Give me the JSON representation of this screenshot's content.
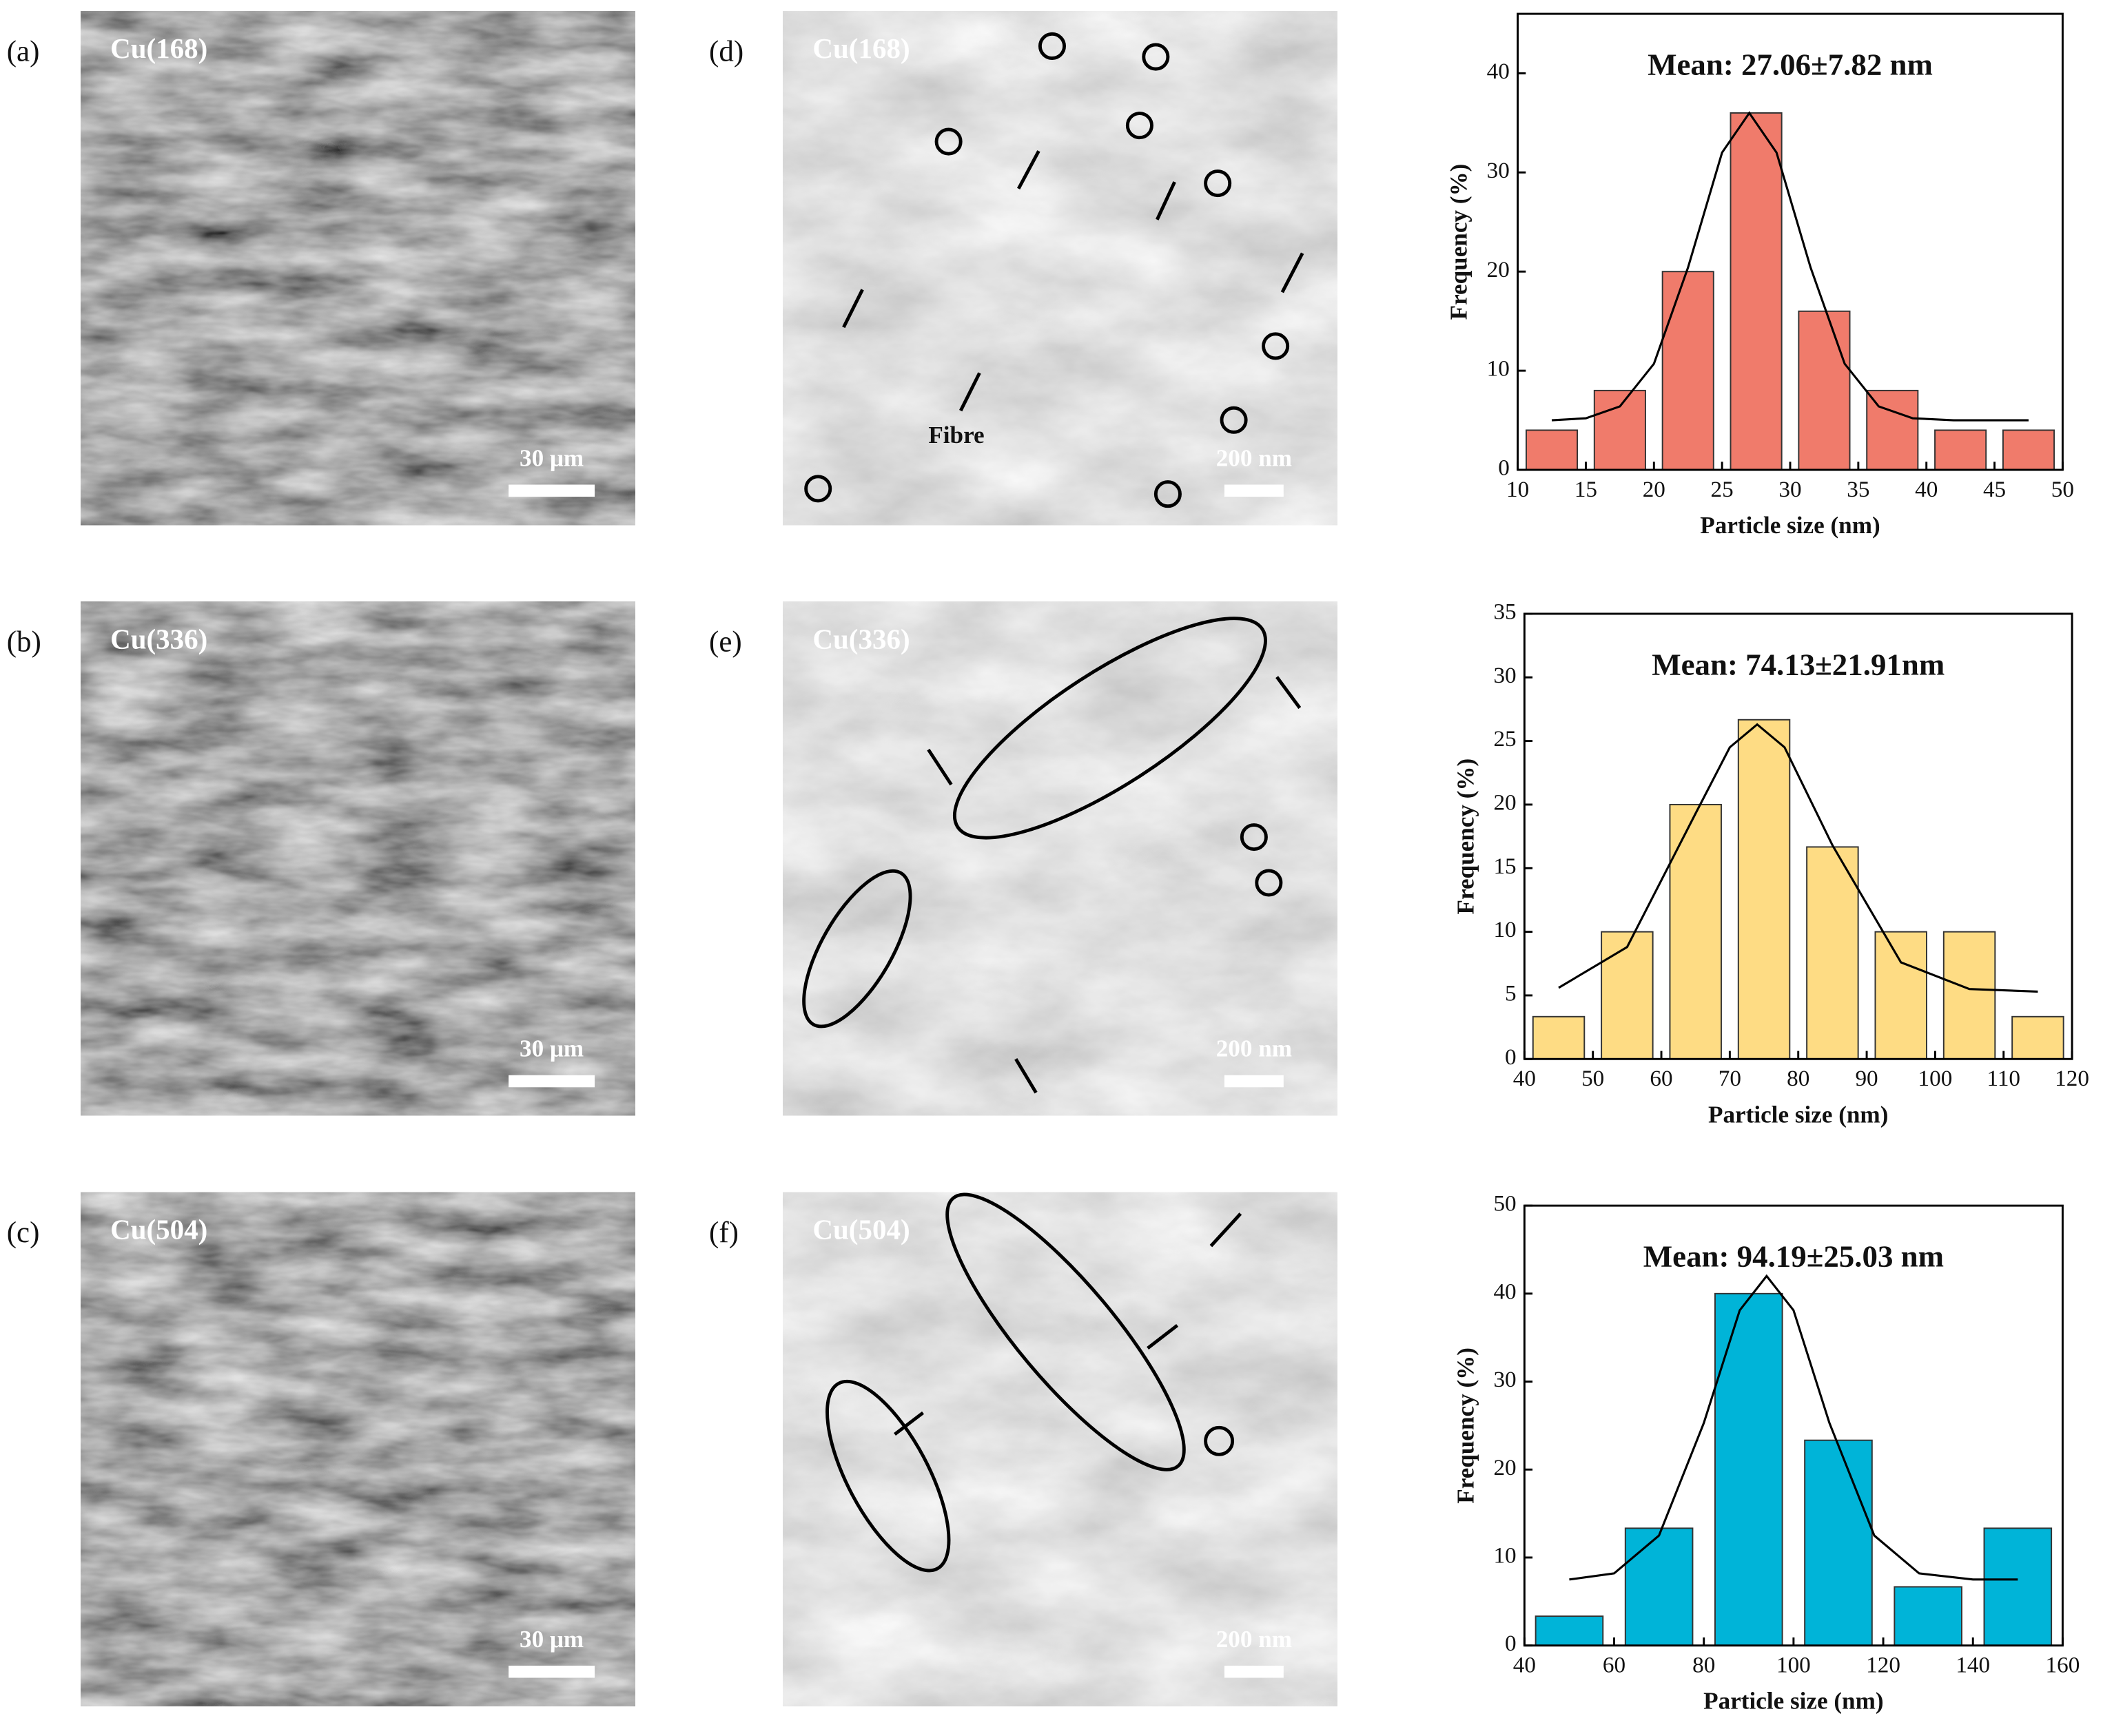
{
  "panels": [
    {
      "label": "(a)",
      "sample": "Cu(168)",
      "scale_bar": "30 μm"
    },
    {
      "label": "(b)",
      "sample": "Cu(336)",
      "scale_bar": "30 μm"
    },
    {
      "label": "(c)",
      "sample": "Cu(504)",
      "scale_bar": "30 μm"
    },
    {
      "label": "(d)",
      "sample": "Cu(168)",
      "scale_bar": "200 nm"
    },
    {
      "label": "(e)",
      "sample": "Cu(336)",
      "scale_bar": "200 nm"
    },
    {
      "label": "(f)",
      "sample": "Cu(504)",
      "scale_bar": "200 nm"
    }
  ],
  "annotation": "Fibre",
  "chart_data": [
    {
      "type": "histogram",
      "title": "Mean: 27.06±7.82 nm",
      "x_label": "Particle size (nm)",
      "y_label": "Frequency (%)",
      "bins": [
        10,
        15,
        20,
        25,
        30,
        35,
        40,
        45,
        50
      ],
      "values": [
        4,
        8,
        20,
        36,
        16,
        8,
        4,
        4
      ],
      "color": "#f07b6b",
      "xlim": [
        10,
        50
      ],
      "ylim": [
        0,
        46
      ],
      "xticks": [
        10,
        15,
        20,
        25,
        30,
        35,
        40,
        45,
        50
      ],
      "yticks": [
        0,
        10,
        20,
        30,
        40
      ],
      "fit": {
        "x": [
          12.5,
          15,
          17.5,
          20,
          22.5,
          25,
          27,
          29,
          31.5,
          34,
          36.5,
          39,
          42,
          47.5
        ],
        "y": [
          5.0,
          5.2,
          6.4,
          10.7,
          20.4,
          32.0,
          36.0,
          32.0,
          20.4,
          10.7,
          6.4,
          5.2,
          5.0,
          5.0
        ]
      }
    },
    {
      "type": "histogram",
      "title": "Mean: 74.13±21.91nm",
      "x_label": "Particle size (nm)",
      "y_label": "Frequency (%)",
      "bins": [
        40,
        50,
        60,
        70,
        80,
        90,
        100,
        110,
        120
      ],
      "values": [
        3.33,
        10,
        20,
        26.67,
        16.67,
        10,
        10,
        3.33
      ],
      "color": "#fedc84",
      "xlim": [
        40,
        120
      ],
      "ylim": [
        0,
        35
      ],
      "xticks": [
        40,
        50,
        60,
        70,
        80,
        90,
        100,
        110,
        120
      ],
      "yticks": [
        0,
        5,
        10,
        15,
        20,
        25,
        30,
        35
      ],
      "fit": {
        "x": [
          45,
          55,
          65,
          70,
          74,
          78,
          85,
          95,
          105,
          115
        ],
        "y": [
          5.6,
          8.8,
          19.3,
          24.5,
          26.3,
          24.5,
          16.8,
          7.6,
          5.5,
          5.3
        ]
      }
    },
    {
      "type": "histogram",
      "title": "Mean: 94.19±25.03 nm",
      "x_label": "Particle size (nm)",
      "y_label": "Frequency (%)",
      "bins": [
        40,
        60,
        80,
        100,
        120,
        140,
        160
      ],
      "values": [
        3.33,
        13.33,
        40,
        23.33,
        6.67,
        13.33
      ],
      "color": "#00b4d8",
      "xlim": [
        40,
        160
      ],
      "ylim": [
        0,
        50
      ],
      "xticks": [
        40,
        60,
        80,
        100,
        120,
        140,
        160
      ],
      "yticks": [
        0,
        10,
        20,
        30,
        40,
        50
      ],
      "fit": {
        "x": [
          50,
          60,
          70,
          80,
          88,
          94,
          100,
          108,
          118,
          128,
          140,
          150
        ],
        "y": [
          7.5,
          8.2,
          12.5,
          25.3,
          38.1,
          42.0,
          38.1,
          25.3,
          12.5,
          8.2,
          7.5,
          7.5
        ]
      }
    }
  ]
}
